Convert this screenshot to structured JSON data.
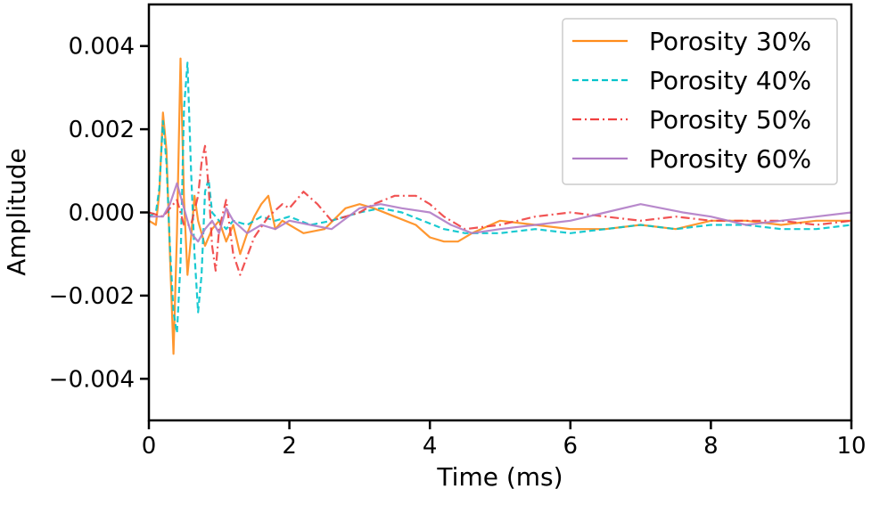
{
  "chart_data": {
    "type": "line",
    "title": "",
    "xlabel": "Time (ms)",
    "ylabel": "Amplitude",
    "xlim": [
      0,
      10
    ],
    "ylim": [
      -0.005,
      0.005
    ],
    "xticks": [
      0,
      2,
      4,
      6,
      8,
      10
    ],
    "xtick_labels": [
      "0",
      "2",
      "4",
      "6",
      "8",
      "10"
    ],
    "yticks": [
      -0.004,
      -0.002,
      0.0,
      0.002,
      0.004
    ],
    "ytick_labels": [
      "−0.004",
      "−0.002",
      "0.000",
      "0.002",
      "0.004"
    ],
    "grid": false,
    "legend_position": "top-right",
    "series": [
      {
        "name": "Porosity 30%",
        "color": "#ff8c1a",
        "dash": "solid",
        "x": [
          0,
          0.1,
          0.15,
          0.2,
          0.25,
          0.3,
          0.35,
          0.4,
          0.45,
          0.5,
          0.55,
          0.6,
          0.65,
          0.7,
          0.8,
          0.9,
          1.0,
          1.1,
          1.2,
          1.3,
          1.4,
          1.5,
          1.6,
          1.7,
          1.8,
          1.9,
          2.0,
          2.2,
          2.5,
          2.8,
          3.0,
          3.2,
          3.5,
          3.8,
          4.0,
          4.2,
          4.4,
          4.6,
          5.0,
          5.5,
          6.0,
          6.5,
          7.0,
          7.5,
          8.0,
          8.5,
          9.0,
          9.5,
          10.0
        ],
        "y": [
          -0.0002,
          -0.0003,
          0.0005,
          0.0024,
          0.0015,
          -0.001,
          -0.0034,
          -0.0005,
          0.0037,
          0.0003,
          -0.0015,
          -0.0006,
          0.0004,
          -0.0002,
          -0.0008,
          -0.0004,
          -0.0002,
          -0.0007,
          -0.0003,
          -0.001,
          -0.0005,
          -0.0001,
          0.0002,
          0.0004,
          -0.0004,
          -0.0002,
          -0.0003,
          -0.0005,
          -0.0004,
          0.0001,
          0.0002,
          0.0001,
          -0.0001,
          -0.0003,
          -0.0006,
          -0.0007,
          -0.0007,
          -0.0005,
          -0.0002,
          -0.0003,
          -0.0004,
          -0.0004,
          -0.0003,
          -0.0004,
          -0.0002,
          -0.0002,
          -0.0003,
          -0.0002,
          -0.0002
        ]
      },
      {
        "name": "Porosity 40%",
        "color": "#00c4cc",
        "dash": "dashed",
        "x": [
          0,
          0.1,
          0.15,
          0.2,
          0.25,
          0.3,
          0.35,
          0.4,
          0.45,
          0.5,
          0.55,
          0.6,
          0.65,
          0.7,
          0.75,
          0.8,
          0.85,
          0.9,
          1.0,
          1.1,
          1.2,
          1.4,
          1.6,
          1.8,
          2.0,
          2.3,
          2.6,
          3.0,
          3.3,
          3.6,
          3.9,
          4.2,
          4.5,
          5.0,
          5.5,
          6.0,
          6.5,
          7.0,
          7.5,
          8.0,
          8.5,
          9.0,
          9.5,
          10.0
        ],
        "y": [
          -0.0001,
          0.0,
          0.0006,
          0.0022,
          0.0012,
          -0.0008,
          -0.0024,
          -0.0029,
          -0.0012,
          0.0025,
          0.0036,
          0.001,
          -0.001,
          -0.0024,
          -0.0015,
          0.0005,
          0.0008,
          0.0,
          -0.0002,
          -0.0004,
          -0.0002,
          -0.0003,
          -0.0001,
          -0.0002,
          -0.0001,
          -0.0003,
          -0.0002,
          0.0,
          0.0001,
          0.0,
          -0.0002,
          -0.0004,
          -0.0005,
          -0.0005,
          -0.0004,
          -0.0005,
          -0.0004,
          -0.0003,
          -0.0004,
          -0.0003,
          -0.0003,
          -0.0004,
          -0.0004,
          -0.0003
        ]
      },
      {
        "name": "Porosity 50%",
        "color": "#f04040",
        "dash": "dashdot",
        "x": [
          0,
          0.2,
          0.3,
          0.4,
          0.5,
          0.6,
          0.7,
          0.75,
          0.8,
          0.85,
          0.9,
          0.95,
          1.0,
          1.1,
          1.2,
          1.3,
          1.5,
          1.7,
          1.9,
          2.0,
          2.2,
          2.4,
          2.6,
          2.8,
          3.0,
          3.2,
          3.5,
          3.8,
          4.0,
          4.2,
          4.5,
          5.0,
          5.5,
          6.0,
          6.5,
          7.0,
          7.5,
          8.0,
          8.5,
          9.0,
          9.5,
          10.0
        ],
        "y": [
          0.0,
          -0.0001,
          0.0001,
          0.0003,
          -0.0003,
          -0.0003,
          0.0004,
          0.0012,
          0.0016,
          0.0006,
          -0.0008,
          -0.0014,
          -0.0004,
          0.0003,
          -0.001,
          -0.0015,
          -0.0006,
          -0.0001,
          0.0002,
          0.0001,
          0.0005,
          0.0002,
          -0.0002,
          -0.0001,
          0.0,
          0.0002,
          0.0004,
          0.0004,
          0.0002,
          -0.0001,
          -0.0004,
          -0.0003,
          -0.0001,
          0.0,
          -0.0001,
          -0.0002,
          -0.0001,
          -0.0002,
          -0.0002,
          -0.0002,
          -0.0003,
          -0.0002
        ]
      },
      {
        "name": "Porosity 60%",
        "color": "#b07cc6",
        "dash": "solid",
        "x": [
          0,
          0.2,
          0.3,
          0.4,
          0.5,
          0.6,
          0.7,
          0.8,
          0.9,
          1.0,
          1.1,
          1.2,
          1.4,
          1.6,
          1.8,
          2.0,
          2.3,
          2.6,
          3.0,
          3.3,
          3.6,
          4.0,
          4.3,
          4.6,
          5.0,
          5.5,
          6.0,
          6.5,
          7.0,
          7.3,
          7.6,
          8.0,
          8.5,
          9.0,
          9.5,
          10.0
        ],
        "y": [
          -0.0001,
          -0.0001,
          0.0002,
          0.0007,
          0.0001,
          -0.0005,
          -0.0007,
          -0.0004,
          -0.0002,
          -0.0005,
          0.0001,
          -0.0002,
          -0.0005,
          -0.0003,
          -0.0004,
          -0.0002,
          -0.0003,
          -0.0004,
          0.0001,
          0.0002,
          0.0001,
          0.0,
          -0.0003,
          -0.0005,
          -0.0004,
          -0.0003,
          -0.0002,
          0.0,
          0.0002,
          0.0001,
          0.0,
          -0.0001,
          -0.0003,
          -0.0002,
          -0.0001,
          0.0
        ]
      }
    ]
  }
}
